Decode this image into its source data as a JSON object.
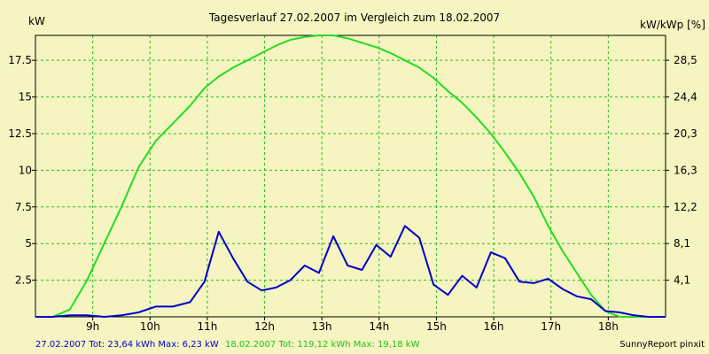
{
  "chart_data": {
    "type": "line",
    "title": "Tagesverlauf 27.02.2007 im Vergleich zum 18.02.2007",
    "y_left_label": "kW",
    "y_right_label": "kW/kWp [%]",
    "x_ticks": [
      "9h",
      "10h",
      "11h",
      "12h",
      "13h",
      "14h",
      "15h",
      "16h",
      "17h",
      "18h"
    ],
    "y_left_ticks": [
      "2.5",
      "5",
      "7.5",
      "10",
      "12.5",
      "15",
      "17.5"
    ],
    "y_right_ticks": [
      "4,1",
      "8,1",
      "12,2",
      "16,3",
      "20,3",
      "24,4",
      "28,5"
    ],
    "x_range": [
      8.0,
      19.0
    ],
    "y_left_range": [
      0,
      19.2
    ],
    "grid": true,
    "series": [
      {
        "name": "27.02.2007",
        "color": "#0000cc",
        "x": [
          8.0,
          8.3,
          8.6,
          8.9,
          9.2,
          9.5,
          9.8,
          10.1,
          10.4,
          10.7,
          10.95,
          11.2,
          11.45,
          11.7,
          11.95,
          12.2,
          12.45,
          12.7,
          12.95,
          13.2,
          13.45,
          13.7,
          13.95,
          14.2,
          14.45,
          14.7,
          14.95,
          15.2,
          15.45,
          15.7,
          15.95,
          16.2,
          16.45,
          16.7,
          16.95,
          17.2,
          17.45,
          17.7,
          17.95,
          18.2,
          18.45,
          18.7,
          19.0
        ],
        "values": [
          0,
          0,
          0.1,
          0.1,
          0,
          0.1,
          0.3,
          0.7,
          0.7,
          1,
          2.4,
          5.8,
          4,
          2.4,
          1.8,
          2,
          2.5,
          3.5,
          3,
          5.5,
          3.5,
          3.2,
          4.9,
          4.1,
          6.2,
          5.4,
          2.2,
          1.5,
          2.8,
          2,
          4.4,
          4,
          2.4,
          2.3,
          2.6,
          1.9,
          1.4,
          1.2,
          0.4,
          0.3,
          0.1,
          0,
          0
        ]
      },
      {
        "name": "18.02.2007",
        "color": "#22dd22",
        "x": [
          8.0,
          8.3,
          8.6,
          8.9,
          9.2,
          9.5,
          9.8,
          10.1,
          10.4,
          10.7,
          10.95,
          11.2,
          11.45,
          11.7,
          11.95,
          12.2,
          12.45,
          12.7,
          12.95,
          13.2,
          13.45,
          13.7,
          13.95,
          14.2,
          14.45,
          14.7,
          14.95,
          15.2,
          15.45,
          15.7,
          15.95,
          16.2,
          16.45,
          16.7,
          16.95,
          17.2,
          17.45,
          17.7,
          17.95,
          18.2,
          18.45,
          18.7,
          19.0
        ],
        "values": [
          0,
          0,
          0.5,
          2.5,
          5,
          7.5,
          10.2,
          12,
          13.2,
          14.4,
          15.6,
          16.4,
          17,
          17.5,
          18,
          18.5,
          18.9,
          19.1,
          19.2,
          19.2,
          19,
          18.7,
          18.4,
          18,
          17.5,
          17,
          16.3,
          15.4,
          14.6,
          13.6,
          12.5,
          11.2,
          9.8,
          8.2,
          6.2,
          4.5,
          3,
          1.5,
          0.4,
          0,
          0,
          0,
          0
        ]
      }
    ]
  },
  "footer": {
    "series1_summary": "27.02.2007 Tot: 23,64 kWh Max: 6,23 kW",
    "series2_summary": "18.02.2007 Tot: 119,12 kWh Max: 19,18 kW",
    "credit": "SunnyReport pinxit"
  }
}
